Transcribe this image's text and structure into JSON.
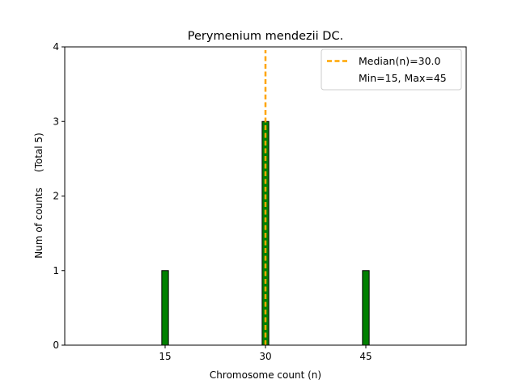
{
  "chart_data": {
    "type": "bar",
    "title": "Perymenium mendezii DC.",
    "xlabel": "Chromosome count (n)",
    "ylabel": "Num of counts     (Total 5)",
    "x": [
      15,
      30,
      45
    ],
    "values": [
      1,
      3,
      1
    ],
    "xlim": [
      0,
      60
    ],
    "ylim": [
      0,
      4
    ],
    "xticks": [
      15,
      30,
      45
    ],
    "yticks": [
      0,
      1,
      2,
      3,
      4
    ],
    "bar_width": 1,
    "bar_color": "#008000",
    "bar_edge_color": "#000000",
    "median": 30.0,
    "median_color": "#FFA500",
    "legend": {
      "position": "top-right",
      "entries": [
        "Median(n)=30.0",
        "Min=15, Max=45"
      ]
    },
    "grid": false
  }
}
